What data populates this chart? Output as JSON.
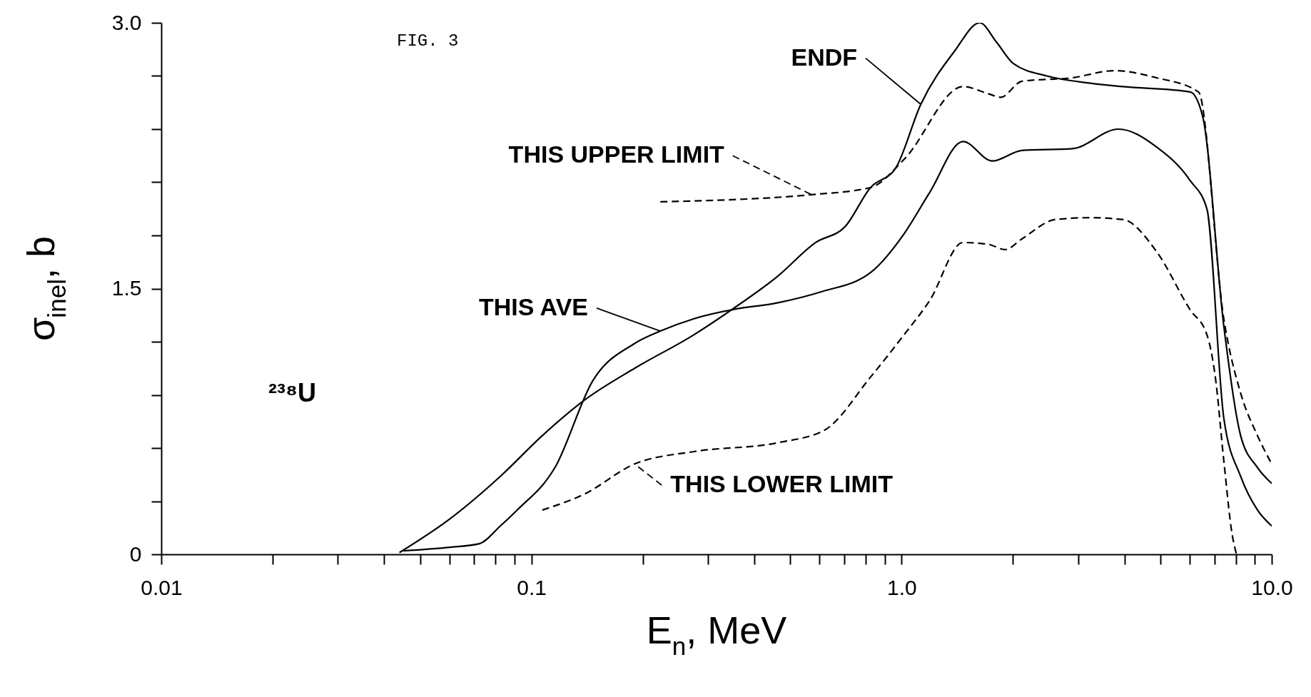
{
  "chart_data": {
    "type": "line",
    "xlabel": "E$_{n}$, MeV",
    "ylabel": "σ$_{inel}$, b",
    "annotations": [
      "FIG. 3",
      "²³⁸U"
    ],
    "log": "x",
    "grid": false,
    "marker": "none",
    "xlim": [
      0.01,
      10
    ],
    "ylim": [
      0,
      3
    ],
    "xticks": [
      0.01,
      {
        "value": 0.02,
        "label": null
      },
      {
        "value": 0.03,
        "label": null
      },
      {
        "value": 0.04,
        "label": null
      },
      {
        "value": 0.05,
        "label": null
      },
      {
        "value": 0.06,
        "label": null
      },
      {
        "value": 0.07,
        "label": null
      },
      {
        "value": 0.08,
        "label": null
      },
      {
        "value": 0.09,
        "label": null
      },
      0.1,
      {
        "value": 0.2,
        "label": null
      },
      {
        "value": 0.3,
        "label": null
      },
      {
        "value": 0.4,
        "label": null
      },
      {
        "value": 0.5,
        "label": null
      },
      {
        "value": 0.6,
        "label": null
      },
      {
        "value": 0.7,
        "label": null
      },
      {
        "value": 0.8,
        "label": null
      },
      {
        "value": 0.9,
        "label": null
      },
      {
        "value": 1,
        "label": "1.0"
      },
      {
        "value": 2,
        "label": null
      },
      {
        "value": 3,
        "label": null
      },
      {
        "value": 4,
        "label": null
      },
      {
        "value": 5,
        "label": null
      },
      {
        "value": 6,
        "label": null
      },
      {
        "value": 7,
        "label": null
      },
      {
        "value": 8,
        "label": null
      },
      {
        "value": 9,
        "label": null
      },
      {
        "value": 10,
        "label": "10.0"
      }
    ],
    "yticks": [
      0,
      {
        "value": 0.3,
        "label": null
      },
      {
        "value": 0.6,
        "label": null
      },
      {
        "value": 0.9,
        "label": null
      },
      {
        "value": 1.2,
        "label": null
      },
      1.5,
      {
        "value": 1.8,
        "label": null
      },
      {
        "value": 2.1,
        "label": null
      },
      {
        "value": 2.4,
        "label": null
      },
      {
        "value": 2.7,
        "label": null
      },
      {
        "value": 3,
        "label": "3.0"
      }
    ],
    "series": [
      {
        "name": "ENDF",
        "color": "#000000",
        "line_style": "solid",
        "x": [
          0.044,
          0.0602,
          0.0824,
          0.107,
          0.139,
          0.19,
          0.275,
          0.347,
          0.463,
          0.586,
          0.704,
          0.824,
          0.964,
          1.127,
          1.39,
          1.626,
          1.806,
          2.005,
          2.472,
          3.21,
          3.96,
          6.02,
          6.51,
          7.42,
          8.24,
          9.15,
          10
        ],
        "values": [
          0.01,
          0.2,
          0.44,
          0.67,
          0.87,
          1.05,
          1.24,
          1.38,
          1.57,
          1.76,
          1.85,
          2.07,
          2.18,
          2.54,
          2.84,
          3.0,
          2.89,
          2.77,
          2.7,
          2.66,
          2.64,
          2.61,
          2.47,
          1.29,
          0.67,
          0.49,
          0.4
        ]
      },
      {
        "name": "THIS UPPER LIMIT",
        "color": "#000000",
        "line_style": "dashed",
        "x": [
          0.223,
          0.571,
          0.824,
          1.016,
          1.465,
          1.714,
          1.853,
          2.113,
          2.893,
          3.758,
          4.88,
          6.34,
          7.42,
          8.24,
          9.15,
          10
        ],
        "values": [
          1.99,
          2.03,
          2.07,
          2.23,
          2.64,
          2.6,
          2.58,
          2.67,
          2.69,
          2.73,
          2.69,
          2.61,
          1.33,
          0.91,
          0.67,
          0.51
        ]
      },
      {
        "name": "THIS AVE",
        "color": "#000000",
        "line_style": "solid",
        "x": [
          0.0451,
          0.0602,
          0.0723,
          0.0824,
          0.0915,
          0.1158,
          0.1465,
          0.19,
          0.223,
          0.275,
          0.347,
          0.463,
          0.602,
          0.824,
          1.016,
          1.189,
          1.465,
          1.758,
          2.113,
          2.893,
          3.855,
          4.88,
          6.02,
          6.68,
          7.42,
          8.24,
          9.15,
          10
        ],
        "values": [
          0.02,
          0.04,
          0.06,
          0.16,
          0.25,
          0.49,
          0.98,
          1.19,
          1.26,
          1.33,
          1.38,
          1.42,
          1.48,
          1.59,
          1.81,
          2.04,
          2.33,
          2.22,
          2.28,
          2.29,
          2.4,
          2.3,
          2.11,
          1.95,
          0.77,
          0.44,
          0.25,
          0.16
        ]
      },
      {
        "name": "THIS LOWER LIMIT",
        "color": "#000000",
        "line_style": "dashed",
        "x": [
          0.107,
          0.139,
          0.19,
          0.275,
          0.463,
          0.618,
          0.824,
          1.016,
          1.189,
          1.465,
          1.714,
          1.904,
          2.113,
          2.606,
          3.211,
          3.96,
          4.88,
          6.02,
          6.68,
          7.04,
          7.42,
          7.82,
          8.03
        ],
        "values": [
          0.25,
          0.34,
          0.51,
          0.58,
          0.63,
          0.7,
          1.0,
          1.24,
          1.43,
          1.76,
          1.75,
          1.72,
          1.78,
          1.89,
          1.9,
          1.89,
          1.71,
          1.38,
          1.24,
          1.0,
          0.53,
          0.11,
          0
        ]
      }
    ]
  }
}
